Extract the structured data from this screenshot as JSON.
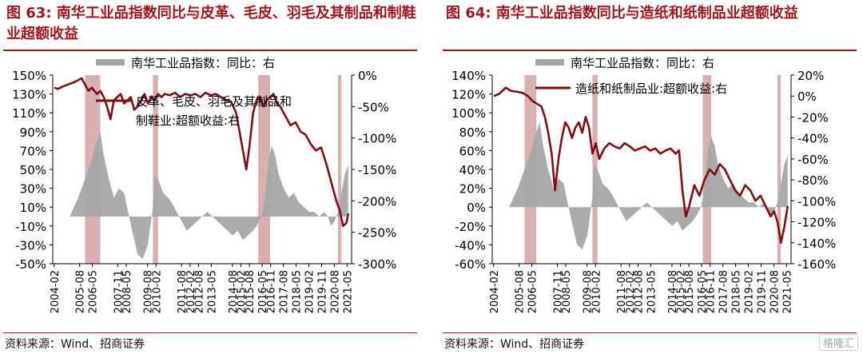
{
  "chart_data": [
    {
      "type": "line",
      "figure_label": "图 63:",
      "title": "南华工业品指数同比与皮革、毛皮、羽毛及其制品和制鞋业超额收益",
      "source": "资料来源：Wind、招商证券",
      "colors": {
        "title": "#a0161f",
        "bar": "#a6a6a6",
        "line": "#7b0f14",
        "highlight": "#c99797"
      },
      "x_ticks": [
        "2004-02",
        "2005-08",
        "2006-05",
        "2007-11",
        "2008-05",
        "2009-08",
        "2010-02",
        "2011-08",
        "2012-02",
        "2012-08",
        "2013-05",
        "2014-08",
        "2015-02",
        "2015-08",
        "2016-05",
        "2016-11",
        "2017-08",
        "2018-05",
        "2019-02",
        "2019-11",
        "2020-08",
        "2021-05"
      ],
      "left_axis": {
        "ticks": [
          "150%",
          "130%",
          "110%",
          "90%",
          "70%",
          "50%",
          "30%",
          "10%",
          "-10%",
          "-30%",
          "-50%"
        ],
        "min": -50,
        "max": 150
      },
      "right_axis": {
        "ticks": [
          "0%",
          "-50%",
          "-100%",
          "-150%",
          "-200%",
          "-250%",
          "-300%"
        ],
        "min": -300,
        "max": 0
      },
      "series": [
        {
          "name": "南华工业品指数：同比：右",
          "kind": "area",
          "axis": "left",
          "x": [
            2004.1,
            2004.5,
            2005.0,
            2005.5,
            2005.8,
            2006.0,
            2006.3,
            2006.5,
            2006.8,
            2007.0,
            2007.3,
            2007.6,
            2007.9,
            2008.2,
            2008.5,
            2008.8,
            2009.0,
            2009.3,
            2009.6,
            2009.9,
            2010.0,
            2010.2,
            2010.5,
            2010.8,
            2011.0,
            2011.3,
            2011.6,
            2011.9,
            2012.2,
            2012.5,
            2012.8,
            2013.1,
            2013.4,
            2013.7,
            2014.0,
            2014.3,
            2014.6,
            2014.9,
            2015.2,
            2015.5,
            2015.8,
            2016.0,
            2016.3,
            2016.5,
            2016.7,
            2016.9,
            2017.1,
            2017.3,
            2017.6,
            2017.9,
            2018.2,
            2018.5,
            2018.8,
            2019.1,
            2019.4,
            2019.7,
            2020.0,
            2020.2,
            2020.4,
            2020.6,
            2020.8,
            2021.0,
            2021.2,
            2021.4
          ],
          "values": [
            0,
            0,
            0,
            20,
            35,
            45,
            60,
            75,
            90,
            65,
            40,
            20,
            30,
            25,
            0,
            -25,
            -40,
            -45,
            -30,
            10,
            45,
            40,
            25,
            20,
            15,
            5,
            -5,
            -15,
            -10,
            -5,
            0,
            5,
            0,
            -5,
            -10,
            -15,
            -20,
            -15,
            -25,
            -20,
            -15,
            -10,
            0,
            20,
            60,
            75,
            65,
            45,
            30,
            20,
            25,
            15,
            10,
            5,
            5,
            0,
            5,
            0,
            -10,
            -5,
            5,
            25,
            45,
            55
          ]
        },
        {
          "name": "皮革、毛皮、羽毛及其制品和制鞋业:超额收益:右",
          "kind": "line",
          "axis": "right",
          "x": [
            2004.1,
            2004.3,
            2004.6,
            2004.9,
            2005.2,
            2005.5,
            2005.7,
            2005.9,
            2006.1,
            2006.3,
            2006.6,
            2006.8,
            2007.0,
            2007.2,
            2007.4,
            2007.6,
            2007.8,
            2008.0,
            2008.2,
            2008.4,
            2008.6,
            2008.8,
            2009.0,
            2009.2,
            2009.4,
            2009.6,
            2009.8,
            2010.0,
            2010.2,
            2010.4,
            2010.6,
            2010.9,
            2011.2,
            2011.5,
            2011.8,
            2012.1,
            2012.4,
            2012.7,
            2013.0,
            2013.3,
            2013.6,
            2013.9,
            2014.2,
            2014.5,
            2014.8,
            2015.0,
            2015.2,
            2015.4,
            2015.6,
            2015.8,
            2016.0,
            2016.2,
            2016.4,
            2016.6,
            2016.8,
            2017.0,
            2017.2,
            2017.4,
            2017.6,
            2017.8,
            2018.0,
            2018.3,
            2018.6,
            2018.9,
            2019.2,
            2019.5,
            2019.8,
            2020.1,
            2020.3,
            2020.5,
            2020.7,
            2020.9,
            2021.1,
            2021.3,
            2021.4
          ],
          "values": [
            -20,
            -22,
            -18,
            -15,
            -12,
            -8,
            -5,
            -15,
            -25,
            -20,
            -30,
            -25,
            -35,
            -50,
            -70,
            -40,
            -35,
            -30,
            -45,
            -40,
            -35,
            -55,
            -50,
            -40,
            -30,
            -45,
            -35,
            -40,
            -30,
            -35,
            -30,
            -32,
            -28,
            -35,
            -30,
            -32,
            -30,
            -35,
            -28,
            -32,
            -30,
            -35,
            -40,
            -42,
            -60,
            -90,
            -120,
            -150,
            -110,
            -60,
            -40,
            -35,
            -50,
            -40,
            -35,
            -30,
            -45,
            -50,
            -60,
            -70,
            -80,
            -75,
            -90,
            -95,
            -110,
            -120,
            -115,
            -140,
            -160,
            -180,
            -200,
            -215,
            -240,
            -235,
            -220
          ]
        }
      ],
      "highlight_periods": [
        [
          2005.9,
          2006.8
        ],
        [
          2009.9,
          2010.2
        ],
        [
          2016.1,
          2016.8
        ],
        [
          2020.8,
          2021.0
        ]
      ]
    },
    {
      "type": "line",
      "figure_label": "图 64:",
      "title": "南华工业品指数同比与造纸和纸制品业超额收益",
      "source": "资料来源：Wind、招商证券",
      "colors": {
        "title": "#a0161f",
        "bar": "#a6a6a6",
        "line": "#7b0f14",
        "highlight": "#c99797"
      },
      "x_ticks": [
        "2004-02",
        "2005-08",
        "2006-05",
        "2007-11",
        "2008-05",
        "2009-08",
        "2010-02",
        "2011-08",
        "2012-02",
        "2012-08",
        "2013-05",
        "2014-08",
        "2015-02",
        "2015-08",
        "2016-05",
        "2016-11",
        "2017-08",
        "2018-05",
        "2019-02",
        "2019-11",
        "2020-08",
        "2021-05"
      ],
      "left_axis": {
        "ticks": [
          "140%",
          "120%",
          "100%",
          "80%",
          "60%",
          "40%",
          "20%",
          "0%",
          "-20%",
          "-40%",
          "-60%"
        ],
        "min": -60,
        "max": 140
      },
      "right_axis": {
        "ticks": [
          "20%",
          "0%",
          "-20%",
          "-40%",
          "-60%",
          "-80%",
          "-100%",
          "-120%",
          "-140%",
          "-160%"
        ],
        "min": -160,
        "max": 20
      },
      "series": [
        {
          "name": "南华工业品指数：同比：右",
          "kind": "area",
          "axis": "left",
          "x": [
            2004.1,
            2004.5,
            2005.0,
            2005.5,
            2005.8,
            2006.0,
            2006.3,
            2006.5,
            2006.8,
            2007.0,
            2007.3,
            2007.6,
            2007.9,
            2008.2,
            2008.5,
            2008.8,
            2009.0,
            2009.3,
            2009.6,
            2009.9,
            2010.0,
            2010.2,
            2010.5,
            2010.8,
            2011.0,
            2011.3,
            2011.6,
            2011.9,
            2012.2,
            2012.5,
            2012.8,
            2013.1,
            2013.4,
            2013.7,
            2014.0,
            2014.3,
            2014.6,
            2014.9,
            2015.2,
            2015.5,
            2015.8,
            2016.0,
            2016.3,
            2016.5,
            2016.7,
            2016.9,
            2017.1,
            2017.3,
            2017.6,
            2017.9,
            2018.2,
            2018.5,
            2018.8,
            2019.1,
            2019.4,
            2019.7,
            2020.0,
            2020.2,
            2020.4,
            2020.6,
            2020.8,
            2021.0,
            2021.2,
            2021.4
          ],
          "values": [
            0,
            0,
            0,
            20,
            35,
            45,
            60,
            75,
            90,
            65,
            40,
            20,
            30,
            25,
            0,
            -25,
            -40,
            -45,
            -30,
            10,
            45,
            40,
            25,
            20,
            15,
            5,
            -5,
            -15,
            -10,
            -5,
            0,
            5,
            0,
            -5,
            -10,
            -15,
            -20,
            -15,
            -25,
            -20,
            -15,
            -10,
            0,
            20,
            60,
            75,
            65,
            45,
            30,
            20,
            25,
            15,
            10,
            5,
            5,
            0,
            5,
            0,
            -10,
            -5,
            5,
            25,
            45,
            55
          ]
        },
        {
          "name": "造纸和纸制品业:超额收益:右",
          "kind": "line",
          "axis": "right",
          "x": [
            2004.1,
            2004.4,
            2004.8,
            2005.1,
            2005.5,
            2005.8,
            2006.1,
            2006.4,
            2006.7,
            2006.9,
            2007.1,
            2007.3,
            2007.5,
            2007.7,
            2007.9,
            2008.1,
            2008.3,
            2008.5,
            2008.7,
            2008.9,
            2009.1,
            2009.3,
            2009.5,
            2009.7,
            2009.9,
            2010.1,
            2010.3,
            2010.6,
            2010.9,
            2011.2,
            2011.5,
            2011.8,
            2012.1,
            2012.4,
            2012.7,
            2013.0,
            2013.3,
            2013.6,
            2013.9,
            2014.2,
            2014.5,
            2014.8,
            2015.0,
            2015.2,
            2015.4,
            2015.6,
            2015.9,
            2016.2,
            2016.5,
            2016.8,
            2017.1,
            2017.4,
            2017.7,
            2018.0,
            2018.3,
            2018.6,
            2018.9,
            2019.2,
            2019.5,
            2019.8,
            2020.1,
            2020.4,
            2020.6,
            2020.8,
            2021.0,
            2021.2,
            2021.4
          ],
          "values": [
            0,
            2,
            8,
            5,
            4,
            3,
            0,
            -5,
            -8,
            -10,
            -20,
            -35,
            -55,
            -90,
            -60,
            -40,
            -25,
            -30,
            -40,
            -30,
            -25,
            -35,
            -20,
            -30,
            -55,
            -45,
            -60,
            -50,
            -45,
            -48,
            -50,
            -45,
            -48,
            -52,
            -50,
            -48,
            -52,
            -50,
            -55,
            -52,
            -50,
            -55,
            -52,
            -90,
            -115,
            -105,
            -85,
            -95,
            -80,
            -70,
            -75,
            -65,
            -70,
            -80,
            -90,
            -95,
            -85,
            -90,
            -100,
            -95,
            -105,
            -115,
            -110,
            -120,
            -140,
            -125,
            -105
          ]
        }
      ],
      "highlight_periods": [
        [
          2005.9,
          2006.6
        ],
        [
          2009.9,
          2010.2
        ],
        [
          2016.4,
          2016.9
        ],
        [
          2020.8,
          2021.0
        ]
      ]
    }
  ],
  "watermark": "格隆汇"
}
